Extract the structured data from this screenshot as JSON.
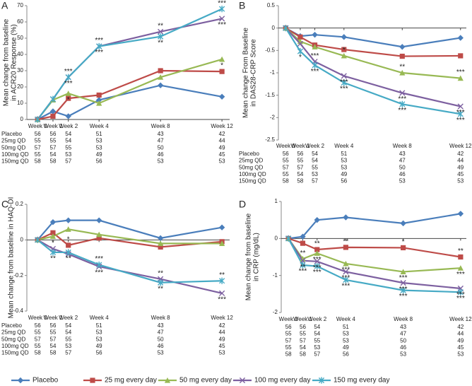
{
  "legend": {
    "series": [
      {
        "name": "Placebo",
        "color": "#4a7ebb",
        "marker": "diamond"
      },
      {
        "name": "25 mg every day",
        "color": "#be4b48",
        "marker": "square"
      },
      {
        "name": "50 mg every day",
        "color": "#98b954",
        "marker": "triangle"
      },
      {
        "name": "100 mg every day",
        "color": "#7d60a0",
        "marker": "x"
      },
      {
        "name": "150 mg every day",
        "color": "#46aac5",
        "marker": "asterisk"
      }
    ]
  },
  "chart_data": [
    {
      "type": "line",
      "label": "A",
      "ylabel": [
        "Mean change from baseline",
        "in ACR20 Response (%)"
      ],
      "x": [
        0,
        1,
        2,
        4,
        8,
        12
      ],
      "xlim": [
        -0.7,
        12.5
      ],
      "xticks": [
        {
          "value": 0,
          "label": "Week 0"
        },
        {
          "value": 1,
          "label": "Week 1"
        },
        {
          "value": 2,
          "label": "Week 2"
        },
        {
          "value": 4,
          "label": "Week 4"
        },
        {
          "value": 8,
          "label": "Week 8"
        },
        {
          "value": 12,
          "label": "Week 12"
        }
      ],
      "ylim": [
        0,
        70
      ],
      "yticks": [
        0,
        10,
        20,
        30,
        40,
        50,
        60,
        70
      ],
      "series": [
        {
          "values": [
            0,
            5,
            2,
            12,
            21,
            14
          ],
          "sig": [
            null,
            null,
            null,
            null,
            null,
            null
          ]
        },
        {
          "values": [
            0,
            2,
            13,
            15,
            30,
            29.5
          ],
          "sig": [
            null,
            null,
            null,
            null,
            null,
            null
          ]
        },
        {
          "values": [
            0,
            12,
            16,
            10,
            26,
            37
          ],
          "sig": [
            null,
            null,
            "*",
            null,
            null,
            "*"
          ]
        },
        {
          "values": [
            0,
            12.5,
            26,
            45,
            54,
            62
          ],
          "sig": [
            null,
            null,
            "***",
            "***",
            "**",
            "***"
          ]
        },
        {
          "values": [
            0,
            12.5,
            26,
            45,
            51,
            68
          ],
          "sig": [
            null,
            null,
            "***",
            "***",
            "**",
            "***"
          ]
        }
      ],
      "table": {
        "row_labels": [
          "Placebo",
          "25mg QD",
          "50mg QD",
          "100mg QD",
          "150mg QD"
        ],
        "rows": [
          [
            56,
            56,
            54,
            51,
            43,
            42
          ],
          [
            55,
            55,
            54,
            53,
            47,
            44
          ],
          [
            57,
            57,
            55,
            53,
            50,
            49
          ],
          [
            55,
            54,
            53,
            49,
            46,
            45
          ],
          [
            58,
            58,
            57,
            56,
            53,
            53
          ]
        ]
      }
    },
    {
      "type": "line",
      "label": "B",
      "ylabel": [
        "Mean change From Baseline",
        "in DAS28-CRP Score"
      ],
      "x": [
        0,
        1,
        2,
        4,
        8,
        12
      ],
      "xlim": [
        -0.5,
        12.4
      ],
      "xticks": [
        {
          "value": 0,
          "label": "Week 0"
        },
        {
          "value": 1,
          "label": "Week 1"
        },
        {
          "value": 2,
          "label": "Week 2"
        },
        {
          "value": 4,
          "label": "Week 4"
        },
        {
          "value": 8,
          "label": "Week 8"
        },
        {
          "value": 12,
          "label": "Week 12"
        }
      ],
      "ylim": [
        -2.5,
        0.5
      ],
      "yticks": [
        -2.5,
        -2,
        -1.5,
        -1,
        -0.5,
        0,
        0.5
      ],
      "series": [
        {
          "values": [
            0,
            -0.18,
            -0.15,
            -0.2,
            -0.42,
            -0.22
          ],
          "sig": [
            null,
            null,
            null,
            null,
            null,
            null
          ]
        },
        {
          "values": [
            0,
            -0.2,
            -0.38,
            -0.48,
            -0.63,
            -0.62
          ],
          "sig": [
            null,
            null,
            null,
            null,
            null,
            null
          ]
        },
        {
          "values": [
            0,
            -0.3,
            -0.42,
            -0.62,
            -1.0,
            -1.12
          ],
          "sig": [
            null,
            null,
            null,
            "*",
            "**",
            "***"
          ]
        },
        {
          "values": [
            0,
            -0.35,
            -0.75,
            -1.07,
            -1.45,
            -1.75
          ],
          "sig": [
            null,
            null,
            "***",
            "***",
            "***",
            "***"
          ]
        },
        {
          "values": [
            0,
            -0.52,
            -0.83,
            -1.22,
            -1.7,
            -1.92
          ],
          "sig": [
            null,
            "*",
            "***",
            "***",
            "***",
            "***"
          ]
        }
      ],
      "table": {
        "row_labels": [
          "Placebo",
          "25mg QD",
          "50mg QD",
          "100mg QD",
          "150mg QD"
        ],
        "rows": [
          [
            56,
            56,
            54,
            51,
            43,
            42
          ],
          [
            55,
            55,
            54,
            53,
            47,
            44
          ],
          [
            57,
            57,
            55,
            53,
            50,
            49
          ],
          [
            55,
            54,
            53,
            49,
            46,
            45
          ],
          [
            58,
            58,
            57,
            56,
            53,
            53
          ]
        ]
      }
    },
    {
      "type": "line",
      "label": "C",
      "ylabel": [
        "Mean change from baseline in HAQ-DI"
      ],
      "x": [
        0,
        1,
        2,
        4,
        8,
        12
      ],
      "xlim": [
        -0.7,
        12.5
      ],
      "xticks": [
        {
          "value": 0,
          "label": "Week 0"
        },
        {
          "value": 1,
          "label": "Week 1"
        },
        {
          "value": 2,
          "label": "Week 2"
        },
        {
          "value": 4,
          "label": "Week 4"
        },
        {
          "value": 8,
          "label": "Week 8"
        },
        {
          "value": 12,
          "label": "Week 12"
        }
      ],
      "ylim": [
        -0.4,
        0.2
      ],
      "yticks": [
        -0.4,
        -0.2,
        0,
        0.2
      ],
      "series": [
        {
          "values": [
            0,
            0.1,
            0.11,
            0.11,
            0.01,
            0.07
          ],
          "sig": [
            null,
            null,
            null,
            null,
            null,
            null
          ]
        },
        {
          "values": [
            0,
            0.04,
            -0.03,
            0.01,
            -0.04,
            -0.01
          ],
          "sig": [
            null,
            null,
            "*",
            null,
            null,
            null
          ]
        },
        {
          "values": [
            0,
            0.02,
            0.06,
            0.03,
            -0.02,
            -0.02
          ],
          "sig": [
            null,
            null,
            null,
            null,
            null,
            null
          ]
        },
        {
          "values": [
            0,
            -0.05,
            -0.08,
            -0.15,
            -0.22,
            -0.3
          ],
          "sig": [
            null,
            "*",
            null,
            "***",
            "**",
            "***"
          ]
        },
        {
          "values": [
            0,
            -0.07,
            -0.07,
            -0.14,
            -0.24,
            -0.23
          ],
          "sig": [
            null,
            "**",
            "**",
            "***",
            "**",
            "**"
          ]
        }
      ],
      "table": {
        "row_labels": [
          "Placebo",
          "25mg QD",
          "50mg QD",
          "100mg QD",
          "150mg QD"
        ],
        "rows": [
          [
            56,
            56,
            54,
            51,
            43,
            42
          ],
          [
            55,
            55,
            54,
            53,
            47,
            44
          ],
          [
            57,
            57,
            55,
            53,
            50,
            49
          ],
          [
            55,
            54,
            53,
            49,
            46,
            45
          ],
          [
            58,
            58,
            57,
            56,
            53,
            53
          ]
        ]
      }
    },
    {
      "type": "line",
      "label": "D",
      "ylabel": [
        "Mean change from baseline",
        "in CRP (mg/dL)"
      ],
      "x": [
        0,
        1,
        2,
        4,
        8,
        12
      ],
      "xlim": [
        -0.5,
        12.4
      ],
      "xticks": [
        {
          "value": 0,
          "label": "Week 0"
        },
        {
          "value": 1,
          "label": "Week 1"
        },
        {
          "value": 2,
          "label": "Week 2"
        },
        {
          "value": 4,
          "label": "Week 4"
        },
        {
          "value": 8,
          "label": "Week 8"
        },
        {
          "value": 12,
          "label": "Week 12"
        }
      ],
      "ylim": [
        -2,
        1
      ],
      "yticks": [
        -2,
        -1,
        0,
        1
      ],
      "series": [
        {
          "values": [
            0,
            0.05,
            0.5,
            0.57,
            0.41,
            0.67
          ],
          "sig": [
            null,
            null,
            null,
            null,
            null,
            null
          ]
        },
        {
          "values": [
            0,
            -0.13,
            -0.3,
            -0.24,
            -0.25,
            -0.5
          ],
          "sig": [
            null,
            null,
            "**",
            "**",
            "*",
            "**"
          ]
        },
        {
          "values": [
            0,
            -0.55,
            -0.4,
            -0.68,
            -0.9,
            -0.8
          ],
          "sig": [
            null,
            "**",
            "***",
            "***",
            "***",
            "***"
          ]
        },
        {
          "values": [
            0,
            -0.6,
            -0.62,
            -0.9,
            -1.2,
            -1.35
          ],
          "sig": [
            null,
            "**",
            "***",
            "***",
            "***",
            "***"
          ]
        },
        {
          "values": [
            0,
            -0.72,
            -0.75,
            -1.12,
            -1.4,
            -1.45
          ],
          "sig": [
            null,
            "***",
            "***",
            "***",
            "***",
            "***"
          ]
        }
      ],
      "table": {
        "rows": [
          [
            56,
            56,
            54,
            51,
            43,
            42
          ],
          [
            55,
            55,
            54,
            53,
            47,
            44
          ],
          [
            57,
            57,
            55,
            53,
            50,
            49
          ],
          [
            55,
            54,
            53,
            49,
            46,
            45
          ],
          [
            58,
            58,
            57,
            56,
            53,
            53
          ]
        ]
      }
    }
  ]
}
